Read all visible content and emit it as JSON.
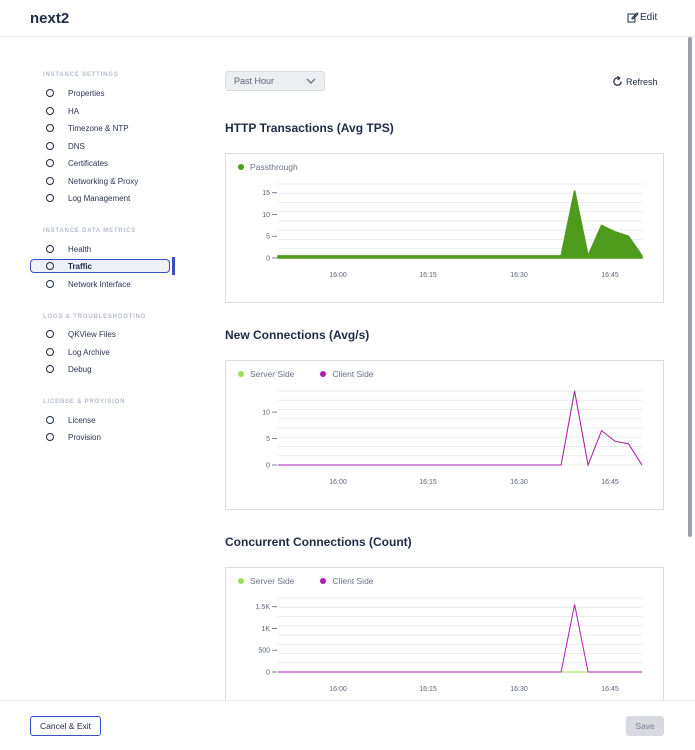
{
  "header": {
    "title": "next2",
    "edit_label": "Edit"
  },
  "sidebar": {
    "sections": [
      {
        "title": "INSTANCE SETTINGS",
        "items": [
          "Properties",
          "HA",
          "Timezone & NTP",
          "DNS",
          "Certificates",
          "Networking & Proxy",
          "Log Management"
        ]
      },
      {
        "title": "INSTANCE DATA METRICS",
        "items": [
          "Health",
          "Traffic",
          "Network Interface"
        ]
      },
      {
        "title": "LOGS & TROUBLESHOOTING",
        "items": [
          "QKView Files",
          "Log Archive",
          "Debug"
        ]
      },
      {
        "title": "LICENSE & PROVISION",
        "items": [
          "License",
          "Provision"
        ]
      }
    ],
    "active_item": "Traffic"
  },
  "toolbar": {
    "time_range": "Past Hour",
    "refresh_label": "Refresh"
  },
  "footer": {
    "cancel_label": "Cancel & Exit",
    "save_label": "Save"
  },
  "colors": {
    "accent": "#3850c4",
    "passthrough": "#4e9a1c",
    "server_side": "#9be05a",
    "client_side": "#b21bb0"
  },
  "chart_data": [
    {
      "type": "area",
      "title": "HTTP Transactions (Avg TPS)",
      "x_ticks": [
        "16:00",
        "16:15",
        "16:30",
        "16:45"
      ],
      "y_ticks": [
        0,
        5,
        10,
        15
      ],
      "ylim": [
        0,
        17
      ],
      "series": [
        {
          "name": "Passthrough",
          "x": [
            0,
            42,
            44,
            46,
            48,
            50,
            52,
            54
          ],
          "values": [
            0.5,
            0.5,
            15.5,
            0.5,
            7.5,
            6,
            5,
            0.5
          ]
        }
      ]
    },
    {
      "type": "line",
      "title": "New Connections (Avg/s)",
      "x_ticks": [
        "16:00",
        "16:15",
        "16:30",
        "16:45"
      ],
      "y_ticks": [
        0,
        5,
        10
      ],
      "ylim": [
        0,
        14
      ],
      "series": [
        {
          "name": "Server Side",
          "x": [
            0,
            42,
            44,
            46,
            48,
            50,
            52,
            54
          ],
          "values": [
            0,
            0,
            14,
            0,
            6.5,
            4.5,
            4,
            0
          ]
        },
        {
          "name": "Client Side",
          "x": [
            0,
            42,
            44,
            46,
            48,
            50,
            52,
            54
          ],
          "values": [
            0,
            0,
            14,
            0,
            6.5,
            4.5,
            4,
            0
          ]
        }
      ]
    },
    {
      "type": "line",
      "title": "Concurrent Connections (Count)",
      "x_ticks": [
        "16:00",
        "16:15",
        "16:30",
        "16:45"
      ],
      "y_ticks": [
        "0",
        "500",
        "1K",
        "1.5K"
      ],
      "ylim": [
        0,
        1700
      ],
      "series": [
        {
          "name": "Server Side",
          "x": [
            0,
            42,
            44,
            46,
            48,
            50,
            52,
            54
          ],
          "values": [
            0,
            0,
            0,
            0,
            0,
            0,
            0,
            0
          ]
        },
        {
          "name": "Client Side",
          "x": [
            0,
            42,
            44,
            46,
            48,
            50,
            52,
            54
          ],
          "values": [
            0,
            0,
            1550,
            0,
            0,
            0,
            0,
            0
          ]
        }
      ]
    }
  ]
}
